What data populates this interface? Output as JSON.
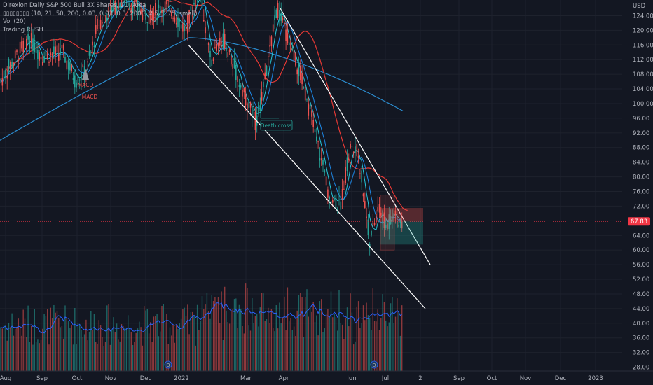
{
  "chart_data": {
    "type": "candlestick",
    "title": "Direxion Daily S&P 500 Bull 3X Shares, 1D, Arca",
    "indicators": [
      "Vol (20)",
      "Trading RUSH"
    ],
    "indicator_params": "(10, 21, 50, 200, 0.03, 0.03, 0.3, 2000, 2.5, 3.75, small)",
    "indicator_params_glyph": "▯▯▯▯▯▯▯▯",
    "currency": "USD",
    "last_price": "67.83",
    "price_tag_color": "#f23645",
    "ylim": [
      26,
      126
    ],
    "y_ticks": [
      28,
      32,
      36,
      40,
      44,
      48,
      52,
      56,
      60,
      64,
      68,
      72,
      76,
      80,
      84,
      88,
      92,
      96,
      100,
      104,
      108,
      112,
      116,
      120,
      124
    ],
    "y_tick_labels": [
      "28.00",
      "32.00",
      "36.00",
      "40.00",
      "44.00",
      "48.00",
      "52.00",
      "56.00",
      "60.00",
      "64.00",
      "68.00",
      "72.00",
      "76.00",
      "80.00",
      "84.00",
      "88.00",
      "92.00",
      "96.00",
      "100.00",
      "104.00",
      "108.00",
      "112.00",
      "116.00",
      "120.00",
      "124.00"
    ],
    "x_labels": [
      "Aug",
      "Sep",
      "Oct",
      "Nov",
      "Dec",
      "2022",
      "Mar",
      "Apr",
      "Jun",
      "Jul",
      "2",
      "Sep",
      "Oct",
      "Nov",
      "Dec",
      "2023"
    ],
    "annotations": {
      "macd_1": "MACD",
      "macd_2": "MACD",
      "death_cross": "Death cross",
      "dividend_marker": "D"
    },
    "key_prices": [
      {
        "date": "2021-08",
        "close": 110
      },
      {
        "date": "2021-09",
        "close": 116
      },
      {
        "date": "2021-10",
        "close": 109
      },
      {
        "date": "2021-11",
        "close": 124
      },
      {
        "date": "2021-12",
        "close": 122
      },
      {
        "date": "2022-01",
        "close": 123
      },
      {
        "date": "2022-02",
        "close": 100
      },
      {
        "date": "2022-03",
        "close": 94
      },
      {
        "date": "2022-04",
        "close": 114
      },
      {
        "date": "2022-05",
        "close": 82
      },
      {
        "date": "2022-06",
        "close": 61
      },
      {
        "date": "2022-07",
        "close": 67.83
      }
    ],
    "colors": {
      "up": "#26a69a",
      "down": "#ef5350",
      "ma_red": "#e53935",
      "ma_blue": "#2b8ccf",
      "channel": "#ffffff"
    }
  }
}
